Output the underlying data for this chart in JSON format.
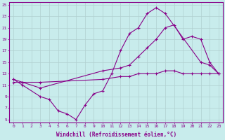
{
  "xlabel": "Windchill (Refroidissement éolien,°C)",
  "xlim": [
    -0.5,
    23.5
  ],
  "ylim": [
    4.5,
    25.5
  ],
  "xticks": [
    0,
    1,
    2,
    3,
    4,
    5,
    6,
    7,
    8,
    9,
    10,
    11,
    12,
    13,
    14,
    15,
    16,
    17,
    18,
    19,
    20,
    21,
    22,
    23
  ],
  "yticks": [
    5,
    7,
    9,
    11,
    13,
    15,
    17,
    19,
    21,
    23,
    25
  ],
  "background_color": "#c8ecec",
  "grid_color": "#b0d0d0",
  "line_color": "#880088",
  "line1_x": [
    0,
    1,
    3,
    4,
    5,
    6,
    7,
    8,
    9,
    10,
    11,
    12,
    13,
    14,
    15,
    16,
    17,
    21,
    22,
    23
  ],
  "line1_y": [
    12,
    11,
    9.0,
    8.5,
    6.5,
    6.0,
    5.0,
    7.5,
    9.5,
    10.0,
    13.0,
    17.0,
    20.0,
    21.0,
    23.5,
    24.5,
    23.5,
    15.0,
    14.5,
    13.0
  ],
  "line2_x": [
    0,
    1,
    3,
    10,
    12,
    13,
    14,
    15,
    16,
    17,
    18,
    19,
    20,
    21,
    22,
    23
  ],
  "line2_y": [
    12,
    11.5,
    10.5,
    13.5,
    14.0,
    14.5,
    16.0,
    17.5,
    19.0,
    21.0,
    21.5,
    19.0,
    19.5,
    19.0,
    15.0,
    13.0
  ],
  "line3_x": [
    0,
    1,
    3,
    10,
    12,
    13,
    14,
    15,
    16,
    17,
    18,
    19,
    20,
    21,
    22,
    23
  ],
  "line3_y": [
    11.5,
    11.5,
    11.5,
    12.0,
    12.5,
    12.5,
    13.0,
    13.0,
    13.0,
    13.5,
    13.5,
    13.0,
    13.0,
    13.0,
    13.0,
    13.0
  ],
  "marker": "+",
  "marker_size": 3,
  "linewidth": 0.8,
  "tick_fontsize": 4.5,
  "label_fontsize": 5.5
}
